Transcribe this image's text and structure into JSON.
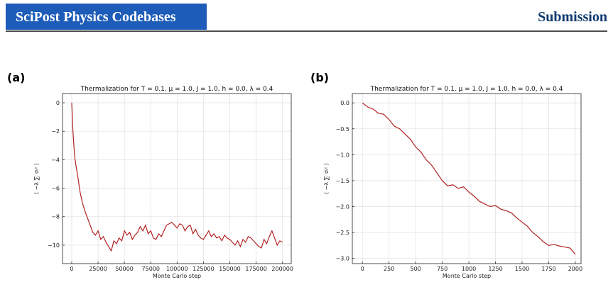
{
  "header": {
    "journal": "SciPost Physics Codebases",
    "status": "Submission"
  },
  "chart_data": [
    {
      "type": "line",
      "panel": "(a)",
      "title": "Thermalization for T = 0.1, μ = 1.0, J = 1.0, h = 0.0, λ = 0.4",
      "xlabel": "Monte Carlo step",
      "ylabel": "⟨ −λ ∑ᵢ σᵢᶻ ⟩",
      "xlim": [
        -8750,
        208300
      ],
      "ylim": [
        -11.3,
        0.65
      ],
      "grid": true,
      "xticks": [
        0,
        25000,
        50000,
        75000,
        100000,
        125000,
        150000,
        175000,
        200000
      ],
      "yticks": [
        {
          "value": -10,
          "label": "−10"
        },
        {
          "value": -8,
          "label": "−8"
        },
        {
          "value": -6,
          "label": "−6"
        },
        {
          "value": -4,
          "label": "−4"
        },
        {
          "value": -2,
          "label": "−2"
        },
        0
      ],
      "series": [
        {
          "color": "#b22222",
          "x": [
            0,
            1000,
            2000,
            3000,
            4000,
            6000,
            8000,
            10000,
            12500,
            15000,
            17500,
            20000,
            22500,
            25000,
            27500,
            30000,
            32500,
            35000,
            37500,
            40000,
            42500,
            45000,
            47500,
            50000,
            52500,
            55000,
            57500,
            60000,
            62500,
            65000,
            67500,
            70000,
            72500,
            75000,
            77500,
            80000,
            82500,
            85000,
            87500,
            90000,
            92500,
            95000,
            97500,
            100000,
            102500,
            105000,
            107500,
            110000,
            112500,
            115000,
            117500,
            120000,
            122500,
            125000,
            127500,
            130000,
            132500,
            135000,
            137500,
            140000,
            142500,
            145000,
            147500,
            150000,
            152500,
            155000,
            157500,
            160000,
            162500,
            165000,
            167500,
            170000,
            172500,
            175000,
            177500,
            180000,
            182500,
            185000,
            187500,
            190000,
            192500,
            195000,
            197500,
            200000
          ],
          "values": [
            0,
            -1.8,
            -3.0,
            -3.9,
            -4.4,
            -5.3,
            -6.3,
            -7.0,
            -7.6,
            -8.1,
            -8.6,
            -9.1,
            -9.3,
            -9.0,
            -9.6,
            -9.4,
            -9.8,
            -10.1,
            -10.4,
            -9.7,
            -9.9,
            -9.5,
            -9.7,
            -9.0,
            -9.3,
            -9.1,
            -9.6,
            -9.3,
            -9.1,
            -8.7,
            -9.0,
            -8.6,
            -9.2,
            -9.0,
            -9.5,
            -9.6,
            -9.2,
            -9.4,
            -9.0,
            -8.6,
            -8.5,
            -8.4,
            -8.6,
            -8.8,
            -8.5,
            -8.6,
            -9.0,
            -8.7,
            -8.6,
            -9.2,
            -8.9,
            -9.3,
            -9.5,
            -9.6,
            -9.3,
            -9.0,
            -9.4,
            -9.2,
            -9.5,
            -9.4,
            -9.7,
            -9.3,
            -9.5,
            -9.6,
            -9.8,
            -10.0,
            -9.7,
            -10.1,
            -9.6,
            -9.8,
            -9.4,
            -9.5,
            -9.7,
            -9.9,
            -10.1,
            -10.2,
            -9.6,
            -9.9,
            -9.4,
            -9.0,
            -9.5,
            -10.0,
            -9.7,
            -9.8
          ]
        }
      ]
    },
    {
      "type": "line",
      "panel": "(b)",
      "title": "Thermalization for T = 0.1, μ = 1.0, J = 1.0, h = 0.0, λ = 0.4",
      "xlabel": "Monte Carlo step",
      "ylabel": "⟨ −λ ∑ᵢ σᵢᶻ ⟩",
      "xlim": [
        -95,
        2054
      ],
      "ylim": [
        -3.1,
        0.18
      ],
      "grid": true,
      "xticks": [
        0,
        250,
        500,
        750,
        1000,
        1250,
        1500,
        1750,
        2000
      ],
      "yticks": [
        {
          "value": -3.0,
          "label": "−3.0"
        },
        {
          "value": -2.5,
          "label": "−2.5"
        },
        {
          "value": -2.0,
          "label": "−2.0"
        },
        {
          "value": -1.5,
          "label": "−1.5"
        },
        {
          "value": -1.0,
          "label": "−1.0"
        },
        {
          "value": -0.5,
          "label": "−0.5"
        },
        {
          "value": 0,
          "label": "0.0"
        }
      ],
      "series": [
        {
          "color": "#b22222",
          "x": [
            0,
            50,
            100,
            150,
            200,
            250,
            300,
            350,
            400,
            450,
            500,
            550,
            600,
            650,
            700,
            750,
            800,
            850,
            900,
            950,
            1000,
            1050,
            1100,
            1150,
            1200,
            1250,
            1300,
            1350,
            1400,
            1450,
            1500,
            1550,
            1600,
            1650,
            1700,
            1750,
            1800,
            1850,
            1900,
            1950,
            2000
          ],
          "values": [
            0,
            -0.08,
            -0.12,
            -0.2,
            -0.22,
            -0.32,
            -0.45,
            -0.5,
            -0.6,
            -0.7,
            -0.85,
            -0.95,
            -1.1,
            -1.2,
            -1.35,
            -1.5,
            -1.6,
            -1.58,
            -1.65,
            -1.62,
            -1.72,
            -1.8,
            -1.9,
            -1.95,
            -2.0,
            -1.98,
            -2.05,
            -2.08,
            -2.12,
            -2.22,
            -2.3,
            -2.38,
            -2.5,
            -2.58,
            -2.68,
            -2.75,
            -2.73,
            -2.76,
            -2.78,
            -2.8,
            -2.92
          ]
        }
      ]
    }
  ]
}
